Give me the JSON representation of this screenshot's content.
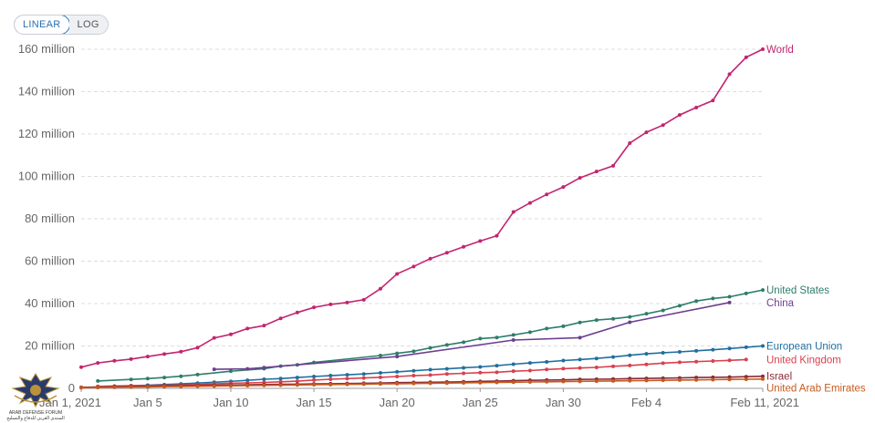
{
  "toggle": {
    "linear_label": "LINEAR",
    "log_label": "LOG",
    "active": "linear"
  },
  "logo": {
    "caption_line1": "ARAB DEFENSE FORUM",
    "caption_line2": "المنتدى العربي للدفاع والتسليح"
  },
  "chart_data": {
    "type": "line",
    "title": "",
    "xlabel": "",
    "ylabel": "",
    "grid": true,
    "y_ticks": [
      {
        "value": 0,
        "label": "0"
      },
      {
        "value": 20,
        "label": "20 million"
      },
      {
        "value": 40,
        "label": "40 million"
      },
      {
        "value": 60,
        "label": "60 million"
      },
      {
        "value": 80,
        "label": "80 million"
      },
      {
        "value": 100,
        "label": "100 million"
      },
      {
        "value": 120,
        "label": "120 million"
      },
      {
        "value": 140,
        "label": "140 million"
      },
      {
        "value": 160,
        "label": "160 million"
      }
    ],
    "x_ticks": [
      {
        "day": 0,
        "label": "Jan 1, 2021"
      },
      {
        "day": 4,
        "label": "Jan 5"
      },
      {
        "day": 9,
        "label": "Jan 10"
      },
      {
        "day": 14,
        "label": "Jan 15"
      },
      {
        "day": 19,
        "label": "Jan 20"
      },
      {
        "day": 24,
        "label": "Jan 25"
      },
      {
        "day": 29,
        "label": "Jan 30"
      },
      {
        "day": 34,
        "label": "Feb 4"
      },
      {
        "day": 41,
        "label": "Feb 11, 2021"
      }
    ],
    "ylim": [
      0,
      160
    ],
    "xlim_days": [
      0,
      41
    ],
    "series": [
      {
        "name": "World",
        "color": "#c2246f",
        "points": [
          [
            0,
            10
          ],
          [
            1,
            12
          ],
          [
            2,
            13
          ],
          [
            3,
            13.8
          ],
          [
            4,
            15
          ],
          [
            5,
            16.2
          ],
          [
            6,
            17.3
          ],
          [
            7,
            19.2
          ],
          [
            8,
            23.8
          ],
          [
            9,
            25.5
          ],
          [
            10,
            28.2
          ],
          [
            11,
            29.6
          ],
          [
            12,
            33
          ],
          [
            13,
            35.8
          ],
          [
            14,
            38.2
          ],
          [
            15,
            39.6
          ],
          [
            16,
            40.5
          ],
          [
            17,
            41.8
          ],
          [
            18,
            47
          ],
          [
            19,
            54
          ],
          [
            20,
            57.5
          ],
          [
            21,
            61.2
          ],
          [
            22,
            64
          ],
          [
            23,
            66.8
          ],
          [
            24,
            69.5
          ],
          [
            25,
            72
          ],
          [
            26,
            83.2
          ],
          [
            27,
            87.5
          ],
          [
            28,
            91.5
          ],
          [
            29,
            95
          ],
          [
            30,
            99.3
          ],
          [
            31,
            102.3
          ],
          [
            32,
            105
          ],
          [
            33,
            115.7
          ],
          [
            34,
            120.8
          ],
          [
            35,
            124.2
          ],
          [
            36,
            129
          ],
          [
            37,
            132.5
          ],
          [
            38,
            135.8
          ],
          [
            39,
            148.2
          ],
          [
            40,
            156.2
          ],
          [
            41,
            160
          ]
        ]
      },
      {
        "name": "United States",
        "color": "#2e7d6b",
        "points": [
          [
            1,
            3.5
          ],
          [
            3,
            4.2
          ],
          [
            4,
            4.6
          ],
          [
            5,
            5.1
          ],
          [
            6,
            5.7
          ],
          [
            7,
            6.5
          ],
          [
            9,
            8.1
          ],
          [
            11,
            9.3
          ],
          [
            12,
            10.5
          ],
          [
            13,
            11.1
          ],
          [
            14,
            12.2
          ],
          [
            18,
            15.5
          ],
          [
            19,
            16.5
          ],
          [
            20,
            17.5
          ],
          [
            21,
            19.1
          ],
          [
            22,
            20.5
          ],
          [
            23,
            21.8
          ],
          [
            24,
            23.5
          ],
          [
            25,
            24
          ],
          [
            26,
            25.2
          ],
          [
            27,
            26.5
          ],
          [
            28,
            28.2
          ],
          [
            29,
            29.3
          ],
          [
            30,
            31.1
          ],
          [
            31,
            32.2
          ],
          [
            32,
            32.8
          ],
          [
            33,
            33.7
          ],
          [
            34,
            35.2
          ],
          [
            35,
            36.8
          ],
          [
            36,
            39
          ],
          [
            37,
            41.2
          ],
          [
            38,
            42.4
          ],
          [
            39,
            43.2
          ],
          [
            40,
            44.8
          ],
          [
            41,
            46.4
          ]
        ]
      },
      {
        "name": "China",
        "color": "#6d3e91",
        "points": [
          [
            8,
            9
          ],
          [
            10,
            9.2
          ],
          [
            11,
            9.8
          ],
          [
            19,
            15
          ],
          [
            26,
            22.8
          ],
          [
            30,
            23.9
          ],
          [
            33,
            31.2
          ],
          [
            39,
            40.5
          ]
        ]
      },
      {
        "name": "European Union",
        "color": "#1f6f9e",
        "points": [
          [
            0,
            0.3
          ],
          [
            1,
            0.6
          ],
          [
            2,
            0.9
          ],
          [
            3,
            1.2
          ],
          [
            4,
            1.5
          ],
          [
            5,
            1.8
          ],
          [
            6,
            2.1
          ],
          [
            7,
            2.5
          ],
          [
            8,
            2.9
          ],
          [
            9,
            3.3
          ],
          [
            10,
            3.8
          ],
          [
            11,
            4.3
          ],
          [
            12,
            4.6
          ],
          [
            13,
            5.1
          ],
          [
            14,
            5.6
          ],
          [
            15,
            6
          ],
          [
            16,
            6.4
          ],
          [
            17,
            6.8
          ],
          [
            18,
            7.3
          ],
          [
            19,
            7.8
          ],
          [
            20,
            8.3
          ],
          [
            21,
            8.8
          ],
          [
            22,
            9.2
          ],
          [
            23,
            9.7
          ],
          [
            24,
            10.1
          ],
          [
            25,
            10.7
          ],
          [
            26,
            11.4
          ],
          [
            27,
            12
          ],
          [
            28,
            12.5
          ],
          [
            29,
            13.1
          ],
          [
            30,
            13.6
          ],
          [
            31,
            14.1
          ],
          [
            32,
            14.8
          ],
          [
            33,
            15.6
          ],
          [
            34,
            16.3
          ],
          [
            35,
            16.8
          ],
          [
            36,
            17.2
          ],
          [
            37,
            17.7
          ],
          [
            38,
            18.2
          ],
          [
            39,
            18.8
          ],
          [
            40,
            19.4
          ],
          [
            41,
            20
          ]
        ]
      },
      {
        "name": "United Kingdom",
        "color": "#d9404e",
        "points": [
          [
            1,
            0.9
          ],
          [
            2,
            1.1
          ],
          [
            3,
            1.3
          ],
          [
            5,
            1.5
          ],
          [
            6,
            1.6
          ],
          [
            7,
            1.8
          ],
          [
            8,
            2.1
          ],
          [
            9,
            2.4
          ],
          [
            10,
            2.6
          ],
          [
            11,
            2.8
          ],
          [
            12,
            3.1
          ],
          [
            13,
            3.4
          ],
          [
            14,
            3.9
          ],
          [
            15,
            4.3
          ],
          [
            16,
            4.6
          ],
          [
            17,
            4.9
          ],
          [
            18,
            5.2
          ],
          [
            19,
            5.6
          ],
          [
            20,
            6
          ],
          [
            21,
            6.3
          ],
          [
            22,
            6.8
          ],
          [
            23,
            7.1
          ],
          [
            24,
            7.4
          ],
          [
            25,
            7.6
          ],
          [
            26,
            8.1
          ],
          [
            27,
            8.4
          ],
          [
            28,
            8.9
          ],
          [
            29,
            9.3
          ],
          [
            30,
            9.6
          ],
          [
            31,
            9.9
          ],
          [
            32,
            10.4
          ],
          [
            33,
            10.8
          ],
          [
            34,
            11.3
          ],
          [
            35,
            11.9
          ],
          [
            36,
            12.3
          ],
          [
            37,
            12.6
          ],
          [
            38,
            12.9
          ],
          [
            39,
            13.2
          ],
          [
            40,
            13.6
          ]
        ]
      },
      {
        "name": "Israel",
        "color": "#8a2a37",
        "points": [
          [
            0,
            0.5
          ],
          [
            1,
            0.6
          ],
          [
            2,
            0.8
          ],
          [
            3,
            0.9
          ],
          [
            4,
            1
          ],
          [
            5,
            1.2
          ],
          [
            6,
            1.3
          ],
          [
            7,
            1.4
          ],
          [
            8,
            1.5
          ],
          [
            9,
            1.6
          ],
          [
            10,
            1.7
          ],
          [
            11,
            1.8
          ],
          [
            12,
            1.9
          ],
          [
            13,
            2
          ],
          [
            14,
            2.1
          ],
          [
            15,
            2.2
          ],
          [
            16,
            2.3
          ],
          [
            17,
            2.4
          ],
          [
            18,
            2.5
          ],
          [
            19,
            2.7
          ],
          [
            20,
            2.8
          ],
          [
            21,
            2.9
          ],
          [
            22,
            3
          ],
          [
            23,
            3.1
          ],
          [
            24,
            3.3
          ],
          [
            25,
            3.4
          ],
          [
            26,
            3.6
          ],
          [
            27,
            3.8
          ],
          [
            28,
            3.9
          ],
          [
            29,
            4
          ],
          [
            30,
            4.2
          ],
          [
            31,
            4.3
          ],
          [
            32,
            4.4
          ],
          [
            33,
            4.6
          ],
          [
            34,
            4.7
          ],
          [
            35,
            4.8
          ],
          [
            36,
            4.9
          ],
          [
            37,
            5.1
          ],
          [
            38,
            5.2
          ],
          [
            39,
            5.3
          ],
          [
            40,
            5.5
          ],
          [
            41,
            5.7
          ]
        ]
      },
      {
        "name": "United Arab Emirates",
        "color": "#c65a1e",
        "points": [
          [
            0,
            0.3
          ],
          [
            1,
            0.4
          ],
          [
            2,
            0.5
          ],
          [
            3,
            0.6
          ],
          [
            4,
            0.7
          ],
          [
            5,
            0.8
          ],
          [
            6,
            0.9
          ],
          [
            7,
            1
          ],
          [
            8,
            1.1
          ],
          [
            9,
            1.2
          ],
          [
            10,
            1.3
          ],
          [
            11,
            1.4
          ],
          [
            12,
            1.5
          ],
          [
            13,
            1.6
          ],
          [
            14,
            1.7
          ],
          [
            15,
            1.8
          ],
          [
            16,
            1.9
          ],
          [
            17,
            2
          ],
          [
            18,
            2.1
          ],
          [
            19,
            2.2
          ],
          [
            20,
            2.3
          ],
          [
            21,
            2.4
          ],
          [
            22,
            2.5
          ],
          [
            23,
            2.6
          ],
          [
            24,
            2.7
          ],
          [
            25,
            2.8
          ],
          [
            26,
            2.9
          ],
          [
            27,
            3
          ],
          [
            28,
            3.1
          ],
          [
            29,
            3.2
          ],
          [
            30,
            3.3
          ],
          [
            31,
            3.4
          ],
          [
            32,
            3.5
          ],
          [
            33,
            3.6
          ],
          [
            34,
            3.7
          ],
          [
            35,
            3.8
          ],
          [
            36,
            3.9
          ],
          [
            37,
            4
          ],
          [
            38,
            4.1
          ],
          [
            39,
            4.2
          ],
          [
            40,
            4.3
          ],
          [
            41,
            4.4
          ]
        ]
      }
    ]
  }
}
